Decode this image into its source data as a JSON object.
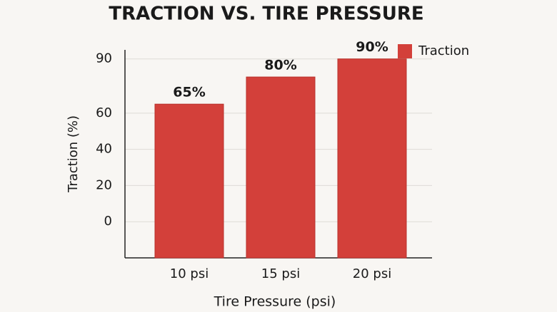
{
  "chart_data": {
    "type": "bar",
    "title": "TRACTION VS. TIRE PRESSURE",
    "x_label": "Tire Pressure (psi)",
    "y_label": "Traction (%)",
    "categories": [
      "10 psi",
      "15 psi",
      "20 psi"
    ],
    "series": [
      {
        "name": "Traction",
        "color": "#d3403a",
        "values": [
          65,
          80,
          90
        ],
        "value_labels": [
          "65%",
          "80%",
          "90%"
        ]
      }
    ],
    "ylim": [
      -20,
      95
    ],
    "yticks": [
      0,
      20,
      40,
      60,
      90
    ],
    "grid": true,
    "legend": "top-right"
  }
}
